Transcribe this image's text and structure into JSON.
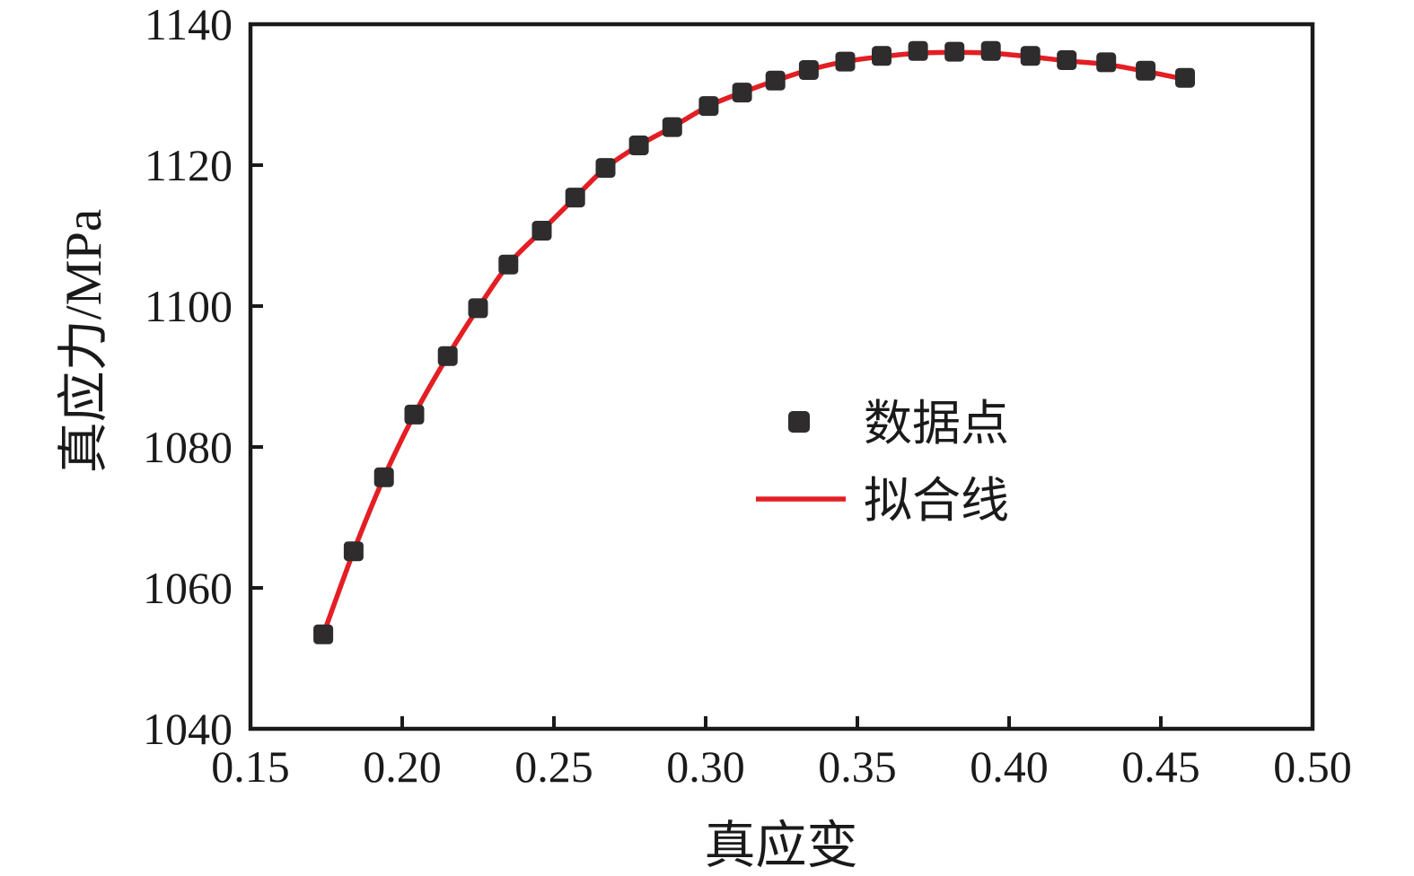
{
  "figure": {
    "background": "#ffffff",
    "text_color": "#1a1a1a",
    "axis_color": "#1a1a1a"
  },
  "chart_data": {
    "type": "scatter",
    "title": "",
    "xlabel": "真应变",
    "ylabel": "真应力/MPa",
    "xlim": [
      0.15,
      0.5
    ],
    "ylim": [
      1040,
      1140
    ],
    "xticks": [
      0.15,
      0.2,
      0.25,
      0.3,
      0.35,
      0.4,
      0.45,
      0.5
    ],
    "xtick_labels": [
      "0.15",
      "0.20",
      "0.25",
      "0.30",
      "0.35",
      "0.40",
      "0.45",
      "0.50"
    ],
    "yticks": [
      1040,
      1060,
      1080,
      1100,
      1120,
      1140
    ],
    "ytick_labels": [
      "1040",
      "1060",
      "1080",
      "1100",
      "1120",
      "1140"
    ],
    "grid": false,
    "legend": {
      "position": "center-right",
      "entries": [
        {
          "label": "数据点",
          "type": "square-marker",
          "color": "#2e2c2d"
        },
        {
          "label": "拟合线",
          "type": "line",
          "color": "#e31e24"
        }
      ]
    },
    "series": [
      {
        "name": "数据点",
        "type": "scatter",
        "marker": "square",
        "color": "#2e2c2d",
        "points": [
          [
            0.174,
            1053.4
          ],
          [
            0.184,
            1065.2
          ],
          [
            0.194,
            1075.7
          ],
          [
            0.204,
            1084.6
          ],
          [
            0.215,
            1092.9
          ],
          [
            0.225,
            1099.7
          ],
          [
            0.235,
            1105.9
          ],
          [
            0.246,
            1110.7
          ],
          [
            0.257,
            1115.4
          ],
          [
            0.267,
            1119.6
          ],
          [
            0.278,
            1122.8
          ],
          [
            0.289,
            1125.4
          ],
          [
            0.301,
            1128.4
          ],
          [
            0.312,
            1130.3
          ],
          [
            0.323,
            1132.0
          ],
          [
            0.334,
            1133.5
          ],
          [
            0.346,
            1134.7
          ],
          [
            0.358,
            1135.5
          ],
          [
            0.37,
            1136.2
          ],
          [
            0.382,
            1136.1
          ],
          [
            0.394,
            1136.2
          ],
          [
            0.407,
            1135.5
          ],
          [
            0.419,
            1134.9
          ],
          [
            0.432,
            1134.6
          ],
          [
            0.445,
            1133.4
          ],
          [
            0.458,
            1132.4
          ]
        ]
      },
      {
        "name": "拟合线",
        "type": "line",
        "color": "#e31e24",
        "points": [
          [
            0.174,
            1053.4
          ],
          [
            0.184,
            1065.2
          ],
          [
            0.194,
            1075.7
          ],
          [
            0.204,
            1084.6
          ],
          [
            0.215,
            1092.9
          ],
          [
            0.225,
            1099.7
          ],
          [
            0.235,
            1105.9
          ],
          [
            0.246,
            1110.7
          ],
          [
            0.257,
            1115.4
          ],
          [
            0.267,
            1119.6
          ],
          [
            0.278,
            1122.8
          ],
          [
            0.289,
            1125.4
          ],
          [
            0.301,
            1128.4
          ],
          [
            0.312,
            1130.3
          ],
          [
            0.323,
            1132.0
          ],
          [
            0.334,
            1133.5
          ],
          [
            0.346,
            1134.7
          ],
          [
            0.358,
            1135.4
          ],
          [
            0.37,
            1135.9
          ],
          [
            0.382,
            1136.0
          ],
          [
            0.394,
            1135.9
          ],
          [
            0.407,
            1135.4
          ],
          [
            0.419,
            1134.8
          ],
          [
            0.432,
            1134.3
          ],
          [
            0.445,
            1133.3
          ],
          [
            0.458,
            1132.2
          ]
        ]
      }
    ]
  }
}
